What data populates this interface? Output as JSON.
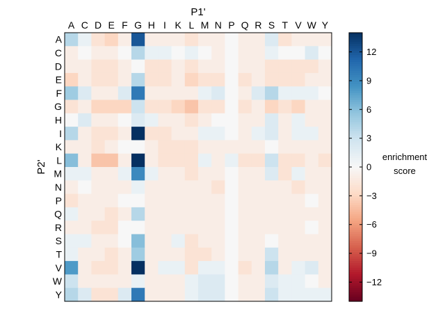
{
  "chart_data": {
    "type": "heatmap",
    "xlabel": "P1'",
    "ylabel": "P2'",
    "colorbar_label_line1": "enrichment",
    "colorbar_label_line2": "score",
    "x_categories": [
      "A",
      "C",
      "D",
      "E",
      "F",
      "G",
      "H",
      "I",
      "K",
      "L",
      "M",
      "N",
      "P",
      "Q",
      "R",
      "S",
      "T",
      "V",
      "W",
      "Y"
    ],
    "y_categories": [
      "A",
      "C",
      "D",
      "E",
      "F",
      "G",
      "H",
      "I",
      "K",
      "L",
      "M",
      "N",
      "P",
      "Q",
      "R",
      "S",
      "T",
      "V",
      "W",
      "Y"
    ],
    "vmin": -14,
    "vmax": 14,
    "colorbar_ticks": [
      12,
      9,
      6,
      3,
      0,
      -3,
      -6,
      -9,
      -12
    ],
    "colorbar_tick_labels": [
      "12",
      "9",
      "6",
      "3",
      "0",
      "−3",
      "−6",
      "−9",
      "−12"
    ],
    "colormap": "RdBu",
    "values": [
      [
        4,
        1,
        -2,
        -3,
        -1,
        12,
        -1,
        -1,
        -1,
        -2,
        -1,
        -1,
        0,
        -1,
        -1,
        2,
        -2,
        -1,
        -1,
        -1
      ],
      [
        -1,
        0,
        -1,
        -1,
        0,
        4,
        1,
        1,
        0,
        1,
        0,
        -1,
        0,
        -1,
        -1,
        1,
        0,
        0,
        2,
        0
      ],
      [
        -1,
        -1,
        -2,
        -2,
        -1,
        0,
        -2,
        -2,
        -1,
        -2,
        -1,
        -1,
        0,
        -1,
        -1,
        -2,
        -2,
        -2,
        -2,
        -1
      ],
      [
        -3,
        -1,
        -2,
        -2,
        -1,
        4,
        -2,
        -2,
        -1,
        -3,
        -2,
        -2,
        0,
        -2,
        -1,
        -2,
        -2,
        -2,
        -1,
        -1
      ],
      [
        5,
        2,
        -1,
        -1,
        2,
        10,
        -1,
        -1,
        -1,
        -1,
        1,
        2,
        0,
        -1,
        2,
        4,
        1,
        1,
        1,
        0
      ],
      [
        -2,
        -1,
        -3,
        -3,
        -3,
        3,
        -2,
        -2,
        -3,
        -4,
        -2,
        -2,
        0,
        -2,
        -1,
        -3,
        -2,
        -3,
        -1,
        -1
      ],
      [
        0,
        2,
        -1,
        -1,
        0,
        2,
        1,
        -1,
        -1,
        -2,
        -1,
        0,
        0,
        -1,
        -1,
        2,
        -1,
        1,
        -1,
        -1
      ],
      [
        4,
        -1,
        -2,
        -2,
        -1,
        14,
        -2,
        -2,
        -1,
        -1,
        1,
        1,
        0,
        -1,
        1,
        2,
        -1,
        1,
        1,
        -1
      ],
      [
        -1,
        -1,
        -2,
        -1,
        0,
        0,
        -1,
        -2,
        -2,
        -2,
        -1,
        -1,
        -1,
        -1,
        -1,
        0,
        -1,
        -1,
        -1,
        -1
      ],
      [
        6,
        -1,
        -4,
        -4,
        -1,
        14,
        -1,
        -2,
        -2,
        -2,
        1,
        -1,
        1,
        -2,
        -2,
        3,
        -2,
        -2,
        -1,
        -2
      ],
      [
        1,
        1,
        -1,
        -1,
        1,
        9,
        1,
        -1,
        -1,
        -2,
        -1,
        -1,
        0,
        -1,
        -1,
        2,
        -2,
        1,
        -1,
        -1
      ],
      [
        -1,
        0,
        -1,
        -1,
        -1,
        1,
        -1,
        -1,
        -1,
        -1,
        -1,
        -2,
        0,
        -1,
        -1,
        -1,
        -1,
        -2,
        -1,
        -1
      ],
      [
        -2,
        -1,
        -1,
        -1,
        0,
        0,
        -1,
        -1,
        -1,
        -1,
        -1,
        -1,
        0,
        -1,
        -1,
        -1,
        -1,
        -1,
        0,
        -1
      ],
      [
        1,
        -1,
        -1,
        -2,
        -1,
        4,
        -1,
        -1,
        -1,
        -1,
        -1,
        -1,
        0,
        -1,
        -1,
        -1,
        -1,
        -1,
        -1,
        -1
      ],
      [
        -1,
        -1,
        -2,
        -2,
        0,
        0,
        -1,
        -1,
        -1,
        -1,
        -1,
        -1,
        0,
        -1,
        -1,
        -1,
        -1,
        -1,
        0,
        -1
      ],
      [
        1,
        1,
        -1,
        -1,
        0,
        6,
        -1,
        -1,
        1,
        -2,
        -1,
        -1,
        0,
        -1,
        -1,
        0,
        -1,
        -1,
        -1,
        -1
      ],
      [
        1,
        -1,
        -1,
        -2,
        -1,
        5,
        -1,
        -1,
        -1,
        -2,
        -2,
        -1,
        0,
        -1,
        -1,
        3,
        -1,
        -1,
        -1,
        -1
      ],
      [
        8,
        -1,
        -2,
        -2,
        -1,
        14,
        -1,
        1,
        1,
        -2,
        1,
        1,
        0,
        -2,
        -1,
        4,
        -1,
        1,
        2,
        -1
      ],
      [
        3,
        -1,
        -1,
        -1,
        -1,
        1,
        -1,
        -1,
        -1,
        1,
        2,
        2,
        0,
        -1,
        -1,
        2,
        1,
        1,
        0,
        -1
      ],
      [
        4,
        2,
        -2,
        -2,
        2,
        10,
        -1,
        -1,
        -1,
        1,
        2,
        2,
        0,
        -1,
        -1,
        3,
        1,
        1,
        1,
        1
      ]
    ]
  }
}
